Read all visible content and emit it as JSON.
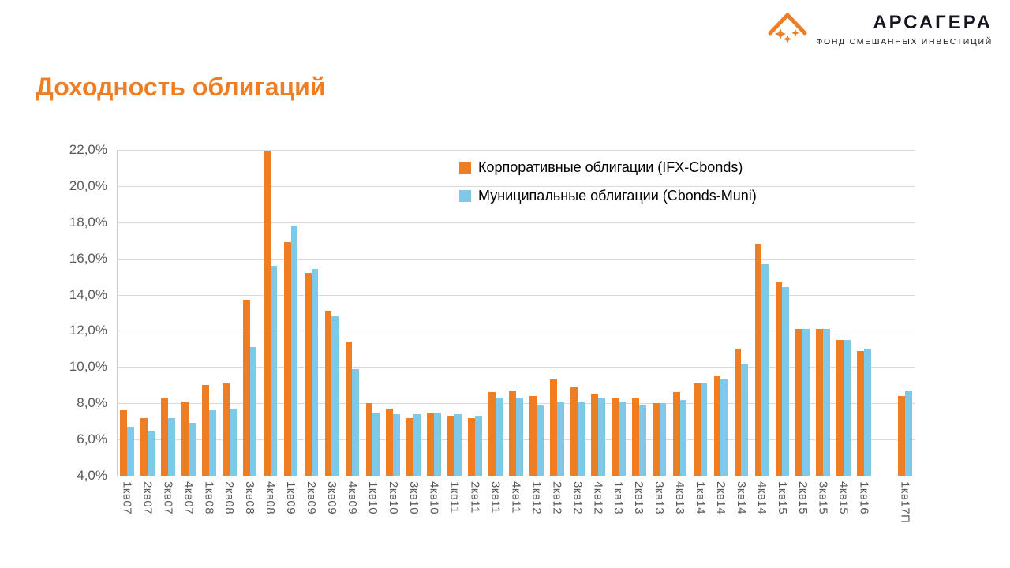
{
  "logo": {
    "name": "АРСАГЕРА",
    "subtitle": "ФОНД СМЕШАННЫХ ИНВЕСТИЦИЙ"
  },
  "title": "Доходность облигаций",
  "colors": {
    "accent_orange": "#ee7d23",
    "series_blue": "#7ec8e8",
    "grid": "#d9d9d9",
    "axis_text": "#595959"
  },
  "chart_data": {
    "type": "bar",
    "title": "Доходность облигаций",
    "ylim": [
      4,
      22
    ],
    "grid": true,
    "legend_position": "inside-top-center-right",
    "yticks": [
      {
        "value": 4,
        "label": "4,0%"
      },
      {
        "value": 6,
        "label": "6,0%"
      },
      {
        "value": 8,
        "label": "8,0%"
      },
      {
        "value": 10,
        "label": "10,0%"
      },
      {
        "value": 12,
        "label": "12,0%"
      },
      {
        "value": 14,
        "label": "14,0%"
      },
      {
        "value": 16,
        "label": "16,0%"
      },
      {
        "value": 18,
        "label": "18,0%"
      },
      {
        "value": 20,
        "label": "20,0%"
      },
      {
        "value": 22,
        "label": "22,0%"
      }
    ],
    "categories": [
      "1кв07",
      "2кв07",
      "3кв07",
      "4кв07",
      "1кв08",
      "2кв08",
      "3кв08",
      "4кв08",
      "1кв09",
      "2кв09",
      "3кв09",
      "4кв09",
      "1кв10",
      "2кв10",
      "3кв10",
      "4кв10",
      "1кв11",
      "2кв11",
      "3кв11",
      "4кв11",
      "1кв12",
      "2кв12",
      "3кв12",
      "4кв12",
      "1кв13",
      "2кв13",
      "3кв13",
      "4кв13",
      "1кв14",
      "2кв14",
      "3кв14",
      "4кв14",
      "1кв15",
      "2кв15",
      "3кв15",
      "4кв15",
      "1кв16",
      "",
      "1кв17П"
    ],
    "series": [
      {
        "name": "Корпоративные облигации (IFX-Cbonds)",
        "color": "#ee7d23",
        "values": [
          7.6,
          7.2,
          8.3,
          8.1,
          9.0,
          9.1,
          13.7,
          21.9,
          16.9,
          15.2,
          13.1,
          11.4,
          8.0,
          7.7,
          7.2,
          7.5,
          7.3,
          7.2,
          8.6,
          8.7,
          8.4,
          9.3,
          8.9,
          8.5,
          8.3,
          8.3,
          8.0,
          8.6,
          9.1,
          9.5,
          11.0,
          16.8,
          14.7,
          12.1,
          12.1,
          11.5,
          10.9,
          null,
          8.4
        ]
      },
      {
        "name": "Муниципальные облигации (Cbonds-Muni)",
        "color": "#7ec8e8",
        "values": [
          6.7,
          6.5,
          7.2,
          6.9,
          7.6,
          7.7,
          11.1,
          15.6,
          17.8,
          15.4,
          12.8,
          9.9,
          7.5,
          7.4,
          7.4,
          7.5,
          7.4,
          7.3,
          8.3,
          8.3,
          7.9,
          8.1,
          8.1,
          8.3,
          8.1,
          7.9,
          8.0,
          8.2,
          9.1,
          9.3,
          10.2,
          15.7,
          14.4,
          12.1,
          12.1,
          11.5,
          11.0,
          null,
          8.7
        ]
      }
    ]
  }
}
